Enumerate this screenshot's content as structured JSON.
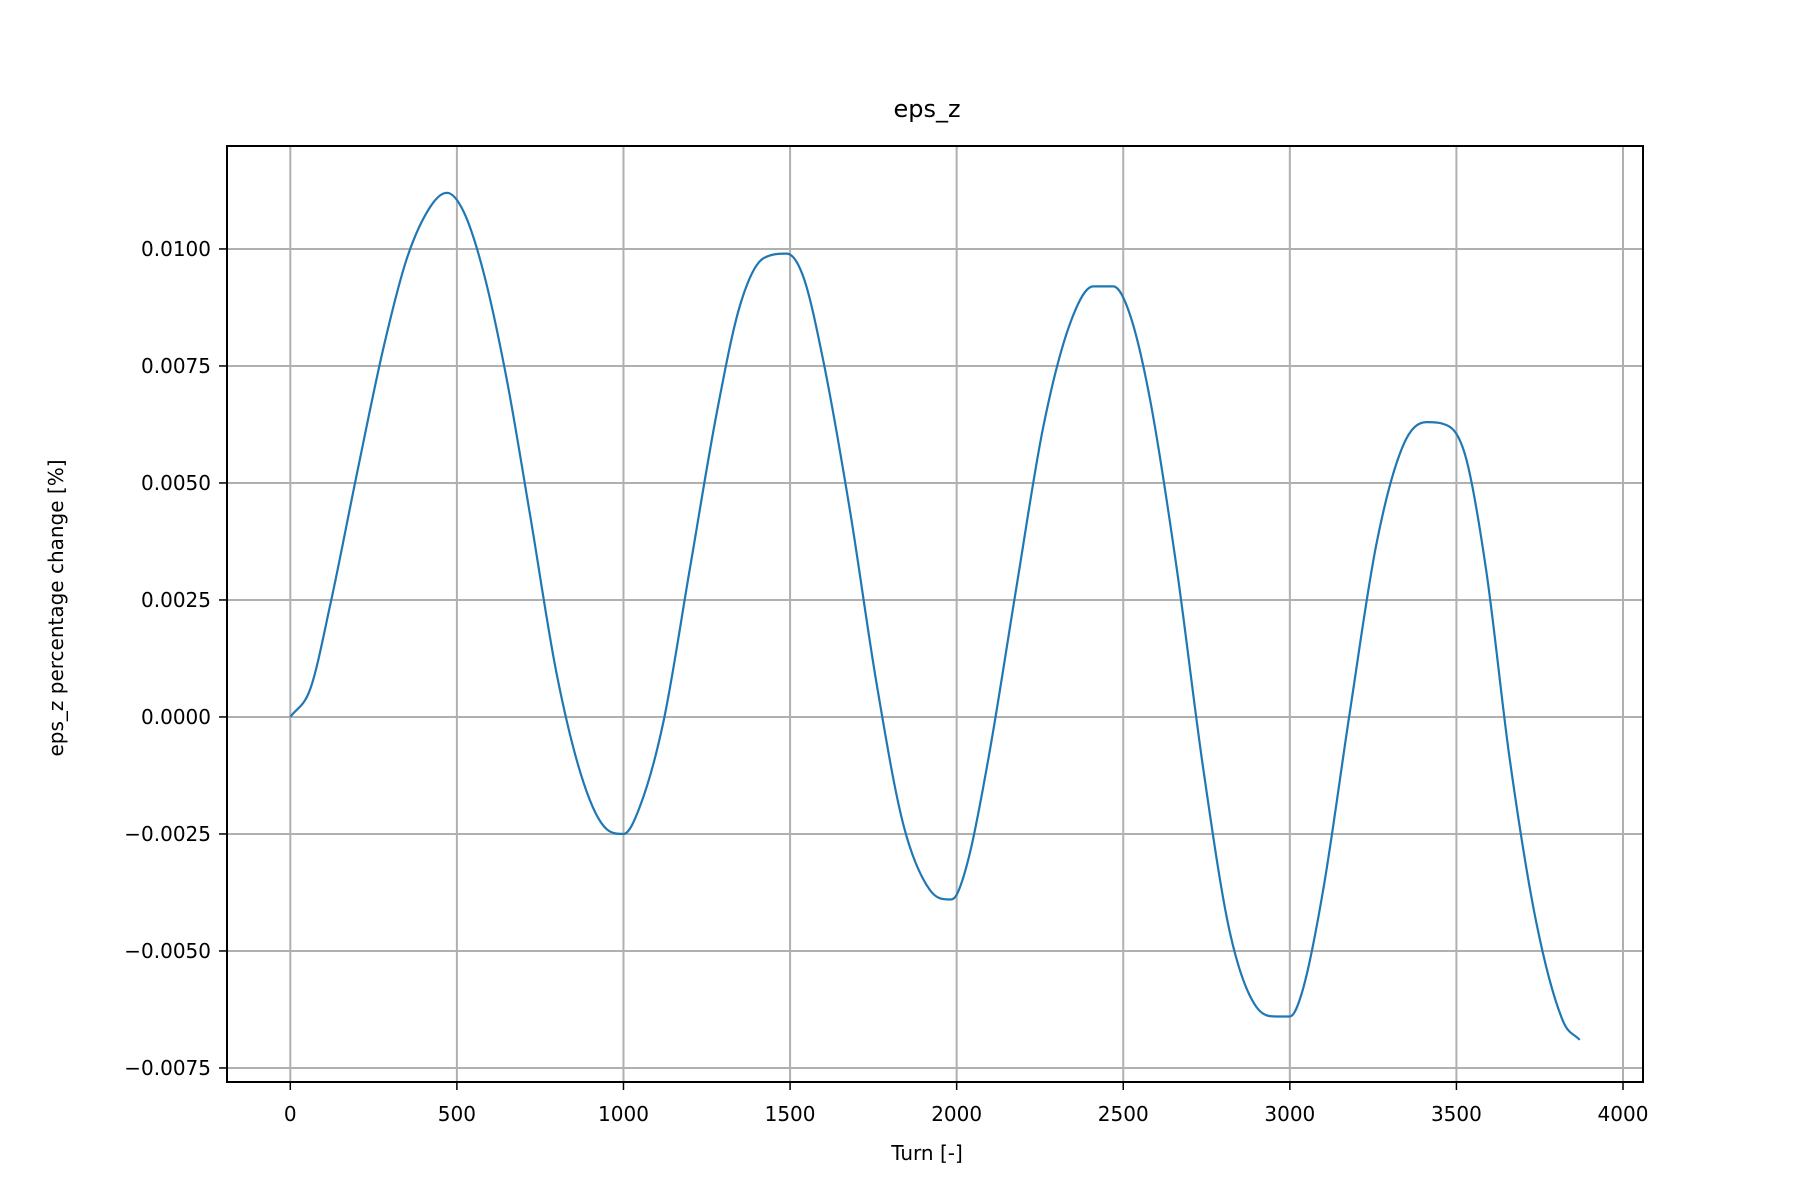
{
  "chart_data": {
    "type": "line",
    "title": "eps_z",
    "xlabel": "Turn [-]",
    "ylabel": "eps_z percentage change [%]",
    "xlim": [
      -190,
      4060
    ],
    "ylim": [
      -0.0078,
      0.0122
    ],
    "grid": true,
    "legend": "none",
    "x_ticks": [
      {
        "value": 0,
        "label": "0"
      },
      {
        "value": 500,
        "label": "500"
      },
      {
        "value": 1000,
        "label": "1000"
      },
      {
        "value": 1500,
        "label": "1500"
      },
      {
        "value": 2000,
        "label": "2000"
      },
      {
        "value": 2500,
        "label": "2500"
      },
      {
        "value": 3000,
        "label": "3000"
      },
      {
        "value": 3500,
        "label": "3500"
      },
      {
        "value": 4000,
        "label": "4000"
      }
    ],
    "y_ticks": [
      {
        "value": -0.0075,
        "label": "−0.0075"
      },
      {
        "value": -0.005,
        "label": "−0.0050"
      },
      {
        "value": -0.0025,
        "label": "−0.0025"
      },
      {
        "value": 0,
        "label": "0.0000"
      },
      {
        "value": 0.0025,
        "label": "0.0025"
      },
      {
        "value": 0.005,
        "label": "0.0050"
      },
      {
        "value": 0.0075,
        "label": "0.0075"
      },
      {
        "value": 0.01,
        "label": "0.0100"
      }
    ],
    "series": [
      {
        "color": "#1f77b4",
        "x": [
          0,
          60,
          120,
          200,
          280,
          350,
          420,
          470,
          520,
          580,
          650,
          720,
          800,
          880,
          950,
          1000,
          1050,
          1120,
          1200,
          1280,
          1350,
          1420,
          1490,
          1540,
          1600,
          1680,
          1760,
          1840,
          1920,
          1980,
          2000,
          2040,
          2100,
          2180,
          2260,
          2340,
          2410,
          2470,
          2520,
          2580,
          2660,
          2740,
          2820,
          2900,
          2960,
          3000,
          3040,
          3100,
          3180,
          3260,
          3340,
          3410,
          3480,
          3530,
          3590,
          3660,
          3740,
          3820,
          3870
        ],
        "y": [
          0.0,
          0.0006,
          0.0024,
          0.0052,
          0.0079,
          0.0098,
          0.0109,
          0.0112,
          0.0108,
          0.0095,
          0.0072,
          0.0043,
          0.0009,
          -0.0014,
          -0.0024,
          -0.0025,
          -0.0019,
          -0.0001,
          0.0032,
          0.0065,
          0.0088,
          0.0098,
          0.0099,
          0.0094,
          0.0076,
          0.0044,
          0.0007,
          -0.0023,
          -0.0037,
          -0.0039,
          -0.0038,
          -0.0029,
          -0.0007,
          0.0028,
          0.0062,
          0.0084,
          0.0092,
          0.0092,
          0.0086,
          0.0068,
          0.0032,
          -0.0011,
          -0.0046,
          -0.0062,
          -0.0064,
          -0.0064,
          -0.0058,
          -0.0037,
          0.0001,
          0.0037,
          0.0058,
          0.0063,
          0.0062,
          0.0055,
          0.0031,
          -0.0009,
          -0.0044,
          -0.0065,
          -0.0069
        ]
      }
    ]
  }
}
